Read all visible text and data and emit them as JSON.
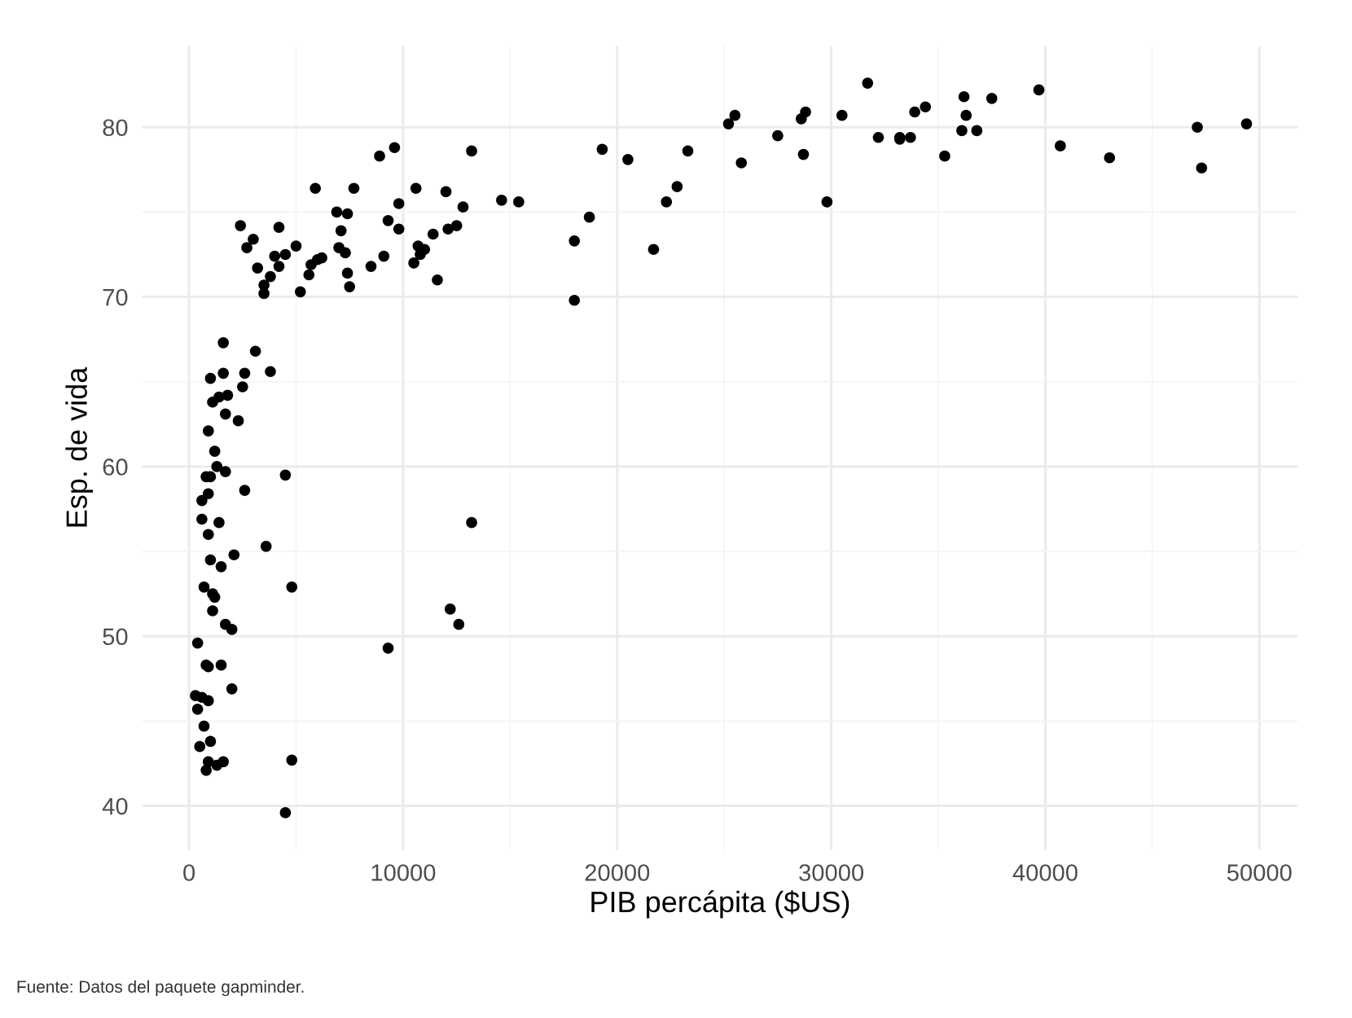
{
  "chart_data": {
    "type": "scatter",
    "xlabel": "PIB percápita ($US)",
    "ylabel": "Esp. de vida",
    "annotations": [
      "Fuente: Datos del paquete gapminder."
    ],
    "xlim": [
      -2200,
      51800
    ],
    "ylim": [
      37.4,
      84.8
    ],
    "xticks": [
      0,
      10000,
      20000,
      30000,
      40000,
      50000
    ],
    "yticks": [
      40,
      50,
      60,
      70,
      80
    ],
    "grid": true,
    "marker": "circle",
    "series": [
      {
        "color": "#000000",
        "x": [
          1000,
          5900,
          6200,
          4800,
          12800,
          34400,
          36100,
          29800,
          1400,
          33700,
          1400,
          3800,
          7400,
          12600,
          9100,
          10700,
          1200,
          400,
          1700,
          2000,
          36300,
          700,
          1700,
          13200,
          5000,
          7000,
          1000,
          300,
          3600,
          9600,
          1500,
          14600,
          8900,
          22800,
          35300,
          2100,
          6000,
          6900,
          5600,
          5700,
          12200,
          600,
          700,
          33200,
          30500,
          13200,
          800,
          32200,
          1300,
          27500,
          5200,
          900,
          600,
          1200,
          3500,
          39700,
          18000,
          36200,
          2500,
          3500,
          11600,
          4500,
          40700,
          25500,
          28600,
          7300,
          31700,
          4500,
          1500,
          1600,
          23300,
          47300,
          10500,
          1600,
          400,
          12100,
          1000,
          800,
          12500,
          1000,
          1800,
          11000,
          12000,
          3100,
          9300,
          3800,
          800,
          900,
          4800,
          1100,
          36800,
          25200,
          2700,
          600,
          2000,
          49400,
          22300,
          2600,
          9800,
          4200,
          7400,
          3200,
          15400,
          20500,
          19300,
          7700,
          10800,
          900,
          1600,
          21700,
          1700,
          9800,
          900,
          47100,
          18700,
          25800,
          900,
          9300,
          28800,
          4000,
          2600,
          4500,
          33900,
          37500,
          4200,
          28700,
          1100,
          7500,
          900,
          18000,
          7100,
          8500,
          1100,
          33200,
          43000,
          10600,
          11400,
          2400,
          3000,
          2300,
          1300,
          500
        ],
        "values": [
          43.8,
          76.4,
          72.3,
          42.7,
          75.3,
          81.2,
          79.8,
          75.6,
          64.1,
          79.4,
          56.7,
          65.6,
          74.9,
          50.7,
          72.4,
          73.0,
          52.3,
          49.6,
          59.7,
          50.4,
          80.7,
          44.7,
          50.7,
          78.6,
          73.0,
          72.9,
          65.2,
          46.5,
          55.3,
          78.8,
          48.3,
          75.7,
          78.3,
          76.5,
          78.3,
          54.8,
          72.2,
          75.0,
          71.3,
          71.9,
          51.6,
          58.0,
          52.9,
          79.3,
          80.7,
          56.7,
          59.4,
          79.4,
          60.0,
          79.5,
          70.3,
          56.0,
          46.4,
          60.9,
          70.2,
          82.2,
          73.3,
          81.8,
          64.7,
          70.7,
          71.0,
          59.5,
          78.9,
          80.7,
          80.5,
          72.6,
          82.6,
          72.5,
          54.1,
          67.3,
          78.6,
          77.6,
          72.0,
          42.6,
          45.7,
          74.0,
          59.4,
          48.3,
          74.2,
          54.5,
          64.2,
          72.8,
          76.2,
          66.8,
          74.5,
          71.2,
          42.1,
          62.1,
          52.9,
          63.8,
          79.8,
          80.2,
          72.9,
          56.9,
          46.9,
          80.2,
          75.6,
          65.5,
          75.5,
          71.8,
          71.4,
          71.7,
          75.6,
          78.1,
          78.7,
          76.4,
          72.5,
          46.2,
          65.5,
          72.8,
          63.1,
          74.0,
          42.6,
          80.0,
          74.7,
          77.9,
          48.2,
          49.3,
          80.9,
          72.4,
          58.6,
          39.6,
          80.9,
          81.7,
          74.1,
          78.4,
          52.5,
          70.6,
          58.4,
          69.8,
          73.9,
          71.8,
          51.5,
          79.4,
          78.2,
          76.4,
          73.7,
          74.2,
          73.4,
          62.7,
          42.4,
          43.5
        ]
      }
    ]
  }
}
